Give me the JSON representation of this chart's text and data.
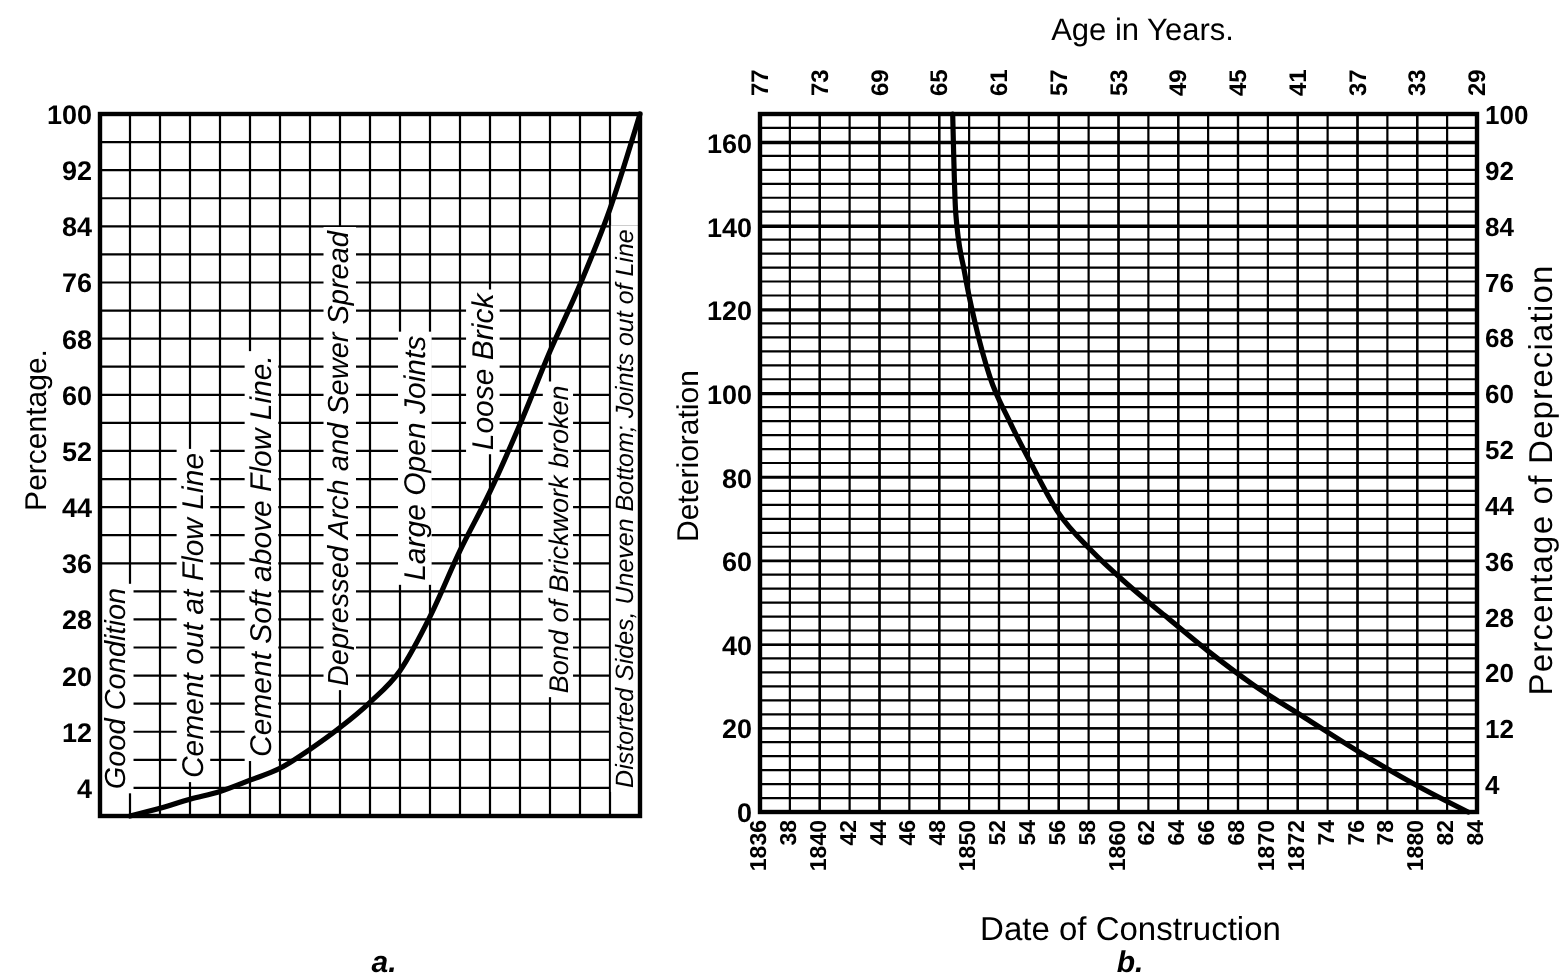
{
  "chart_data": [
    {
      "type": "line",
      "ylabel": "Percentage.",
      "annotations": [
        "Good Condition",
        "Cement out at Flow Line",
        "Cement Soft above Flow Line.",
        "Depressed Arch and Sewer Spread",
        "Large Open Joints",
        "Loose Brick",
        "Bond of Brickwork broken",
        "Distorted Sides, Uneven Bottom; Joints out of Line",
        "a."
      ],
      "categories": [
        null,
        null,
        null,
        null,
        null,
        null,
        null,
        null,
        null,
        null,
        null,
        null,
        null,
        null,
        null,
        null,
        null,
        null,
        null
      ],
      "values": [
        null,
        0,
        1.1,
        2.4,
        3.5,
        5.1,
        6.8,
        9.5,
        12.6,
        16.2,
        20.7,
        28.4,
        37.8,
        46.2,
        55.8,
        66.2,
        75.7,
        86.5,
        100
      ],
      "color": "#000000",
      "ylim": [
        0,
        100
      ],
      "yticks": [
        4,
        {
          "value": 8,
          "label": null
        },
        12,
        {
          "value": 16,
          "label": null
        },
        20,
        {
          "value": 24,
          "label": null
        },
        28,
        {
          "value": 32,
          "label": null
        },
        36,
        {
          "value": 40,
          "label": null
        },
        44,
        {
          "value": 48,
          "label": null
        },
        52,
        {
          "value": 56,
          "label": null
        },
        60,
        {
          "value": 64,
          "label": null
        },
        68,
        {
          "value": 72,
          "label": null
        },
        76,
        {
          "value": 80,
          "label": null
        },
        84,
        {
          "value": 88,
          "label": null
        },
        92,
        {
          "value": 96,
          "label": null
        },
        100
      ],
      "grid": true
    },
    {
      "type": "line",
      "xlabel": "Date of Construction",
      "x2label": "Age in Years.",
      "ylabel": "Deterioration",
      "y2label": "Percentage of Depreciation",
      "annotations": [
        "b."
      ],
      "x": [
        1848.9,
        1849.1,
        1849.7,
        1850.4,
        1851.4,
        1852.7,
        1854.2,
        1855.9,
        1858.2,
        1860.6,
        1863.1,
        1866,
        1869,
        1872.5,
        1876.5,
        1880.4,
        1883.4
      ],
      "values": [
        167,
        143.5,
        129,
        117,
        104,
        93.5,
        83,
        72,
        62.5,
        54.5,
        47,
        38.5,
        30.5,
        22.5,
        13.5,
        5.5,
        0
      ],
      "color": "#000000",
      "xlim": [
        1836,
        1884
      ],
      "xticks": [
        1836,
        {
          "value": 1838,
          "label": "38"
        },
        1840,
        {
          "value": 1842,
          "label": "42"
        },
        {
          "value": 1844,
          "label": "44"
        },
        {
          "value": 1846,
          "label": "46"
        },
        {
          "value": 1848,
          "label": "48"
        },
        1850,
        {
          "value": 1852,
          "label": "52"
        },
        {
          "value": 1854,
          "label": "54"
        },
        {
          "value": 1856,
          "label": "56"
        },
        {
          "value": 1858,
          "label": "58"
        },
        1860,
        {
          "value": 1862,
          "label": "62"
        },
        {
          "value": 1864,
          "label": "64"
        },
        {
          "value": 1866,
          "label": "66"
        },
        {
          "value": 1868,
          "label": "68"
        },
        1870,
        1872,
        {
          "value": 1874,
          "label": "74"
        },
        {
          "value": 1876,
          "label": "76"
        },
        {
          "value": 1878,
          "label": "78"
        },
        1880,
        {
          "value": 1882,
          "label": "82"
        },
        {
          "value": 1884,
          "label": "84"
        }
      ],
      "x2lim": [
        77,
        29
      ],
      "x2ticks": [
        77,
        73,
        69,
        65,
        61,
        57,
        53,
        49,
        45,
        41,
        37,
        33,
        29
      ],
      "ylim": [
        0,
        167
      ],
      "yticks": [
        0,
        20,
        40,
        60,
        80,
        100,
        120,
        140,
        160
      ],
      "y2lim": [
        0,
        100
      ],
      "y2ticks": [
        {
          "value": 2,
          "label": null
        },
        4,
        {
          "value": 6,
          "label": null
        },
        {
          "value": 8,
          "label": null
        },
        {
          "value": 10,
          "label": null
        },
        12,
        {
          "value": 14,
          "label": null
        },
        {
          "value": 16,
          "label": null
        },
        {
          "value": 18,
          "label": null
        },
        20,
        {
          "value": 22,
          "label": null
        },
        {
          "value": 24,
          "label": null
        },
        {
          "value": 26,
          "label": null
        },
        28,
        {
          "value": 30,
          "label": null
        },
        {
          "value": 32,
          "label": null
        },
        {
          "value": 34,
          "label": null
        },
        36,
        {
          "value": 38,
          "label": null
        },
        {
          "value": 40,
          "label": null
        },
        {
          "value": 42,
          "label": null
        },
        44,
        {
          "value": 46,
          "label": null
        },
        {
          "value": 48,
          "label": null
        },
        {
          "value": 50,
          "label": null
        },
        52,
        {
          "value": 54,
          "label": null
        },
        {
          "value": 56,
          "label": null
        },
        {
          "value": 58,
          "label": null
        },
        60,
        {
          "value": 62,
          "label": null
        },
        {
          "value": 64,
          "label": null
        },
        {
          "value": 66,
          "label": null
        },
        68,
        {
          "value": 70,
          "label": null
        },
        {
          "value": 72,
          "label": null
        },
        {
          "value": 74,
          "label": null
        },
        76,
        {
          "value": 78,
          "label": null
        },
        {
          "value": 80,
          "label": null
        },
        {
          "value": 82,
          "label": null
        },
        84,
        {
          "value": 86,
          "label": null
        },
        {
          "value": 88,
          "label": null
        },
        {
          "value": 90,
          "label": null
        },
        92,
        {
          "value": 94,
          "label": null
        },
        {
          "value": 96,
          "label": null
        },
        {
          "value": 98,
          "label": null
        },
        100
      ],
      "grid": true
    }
  ]
}
